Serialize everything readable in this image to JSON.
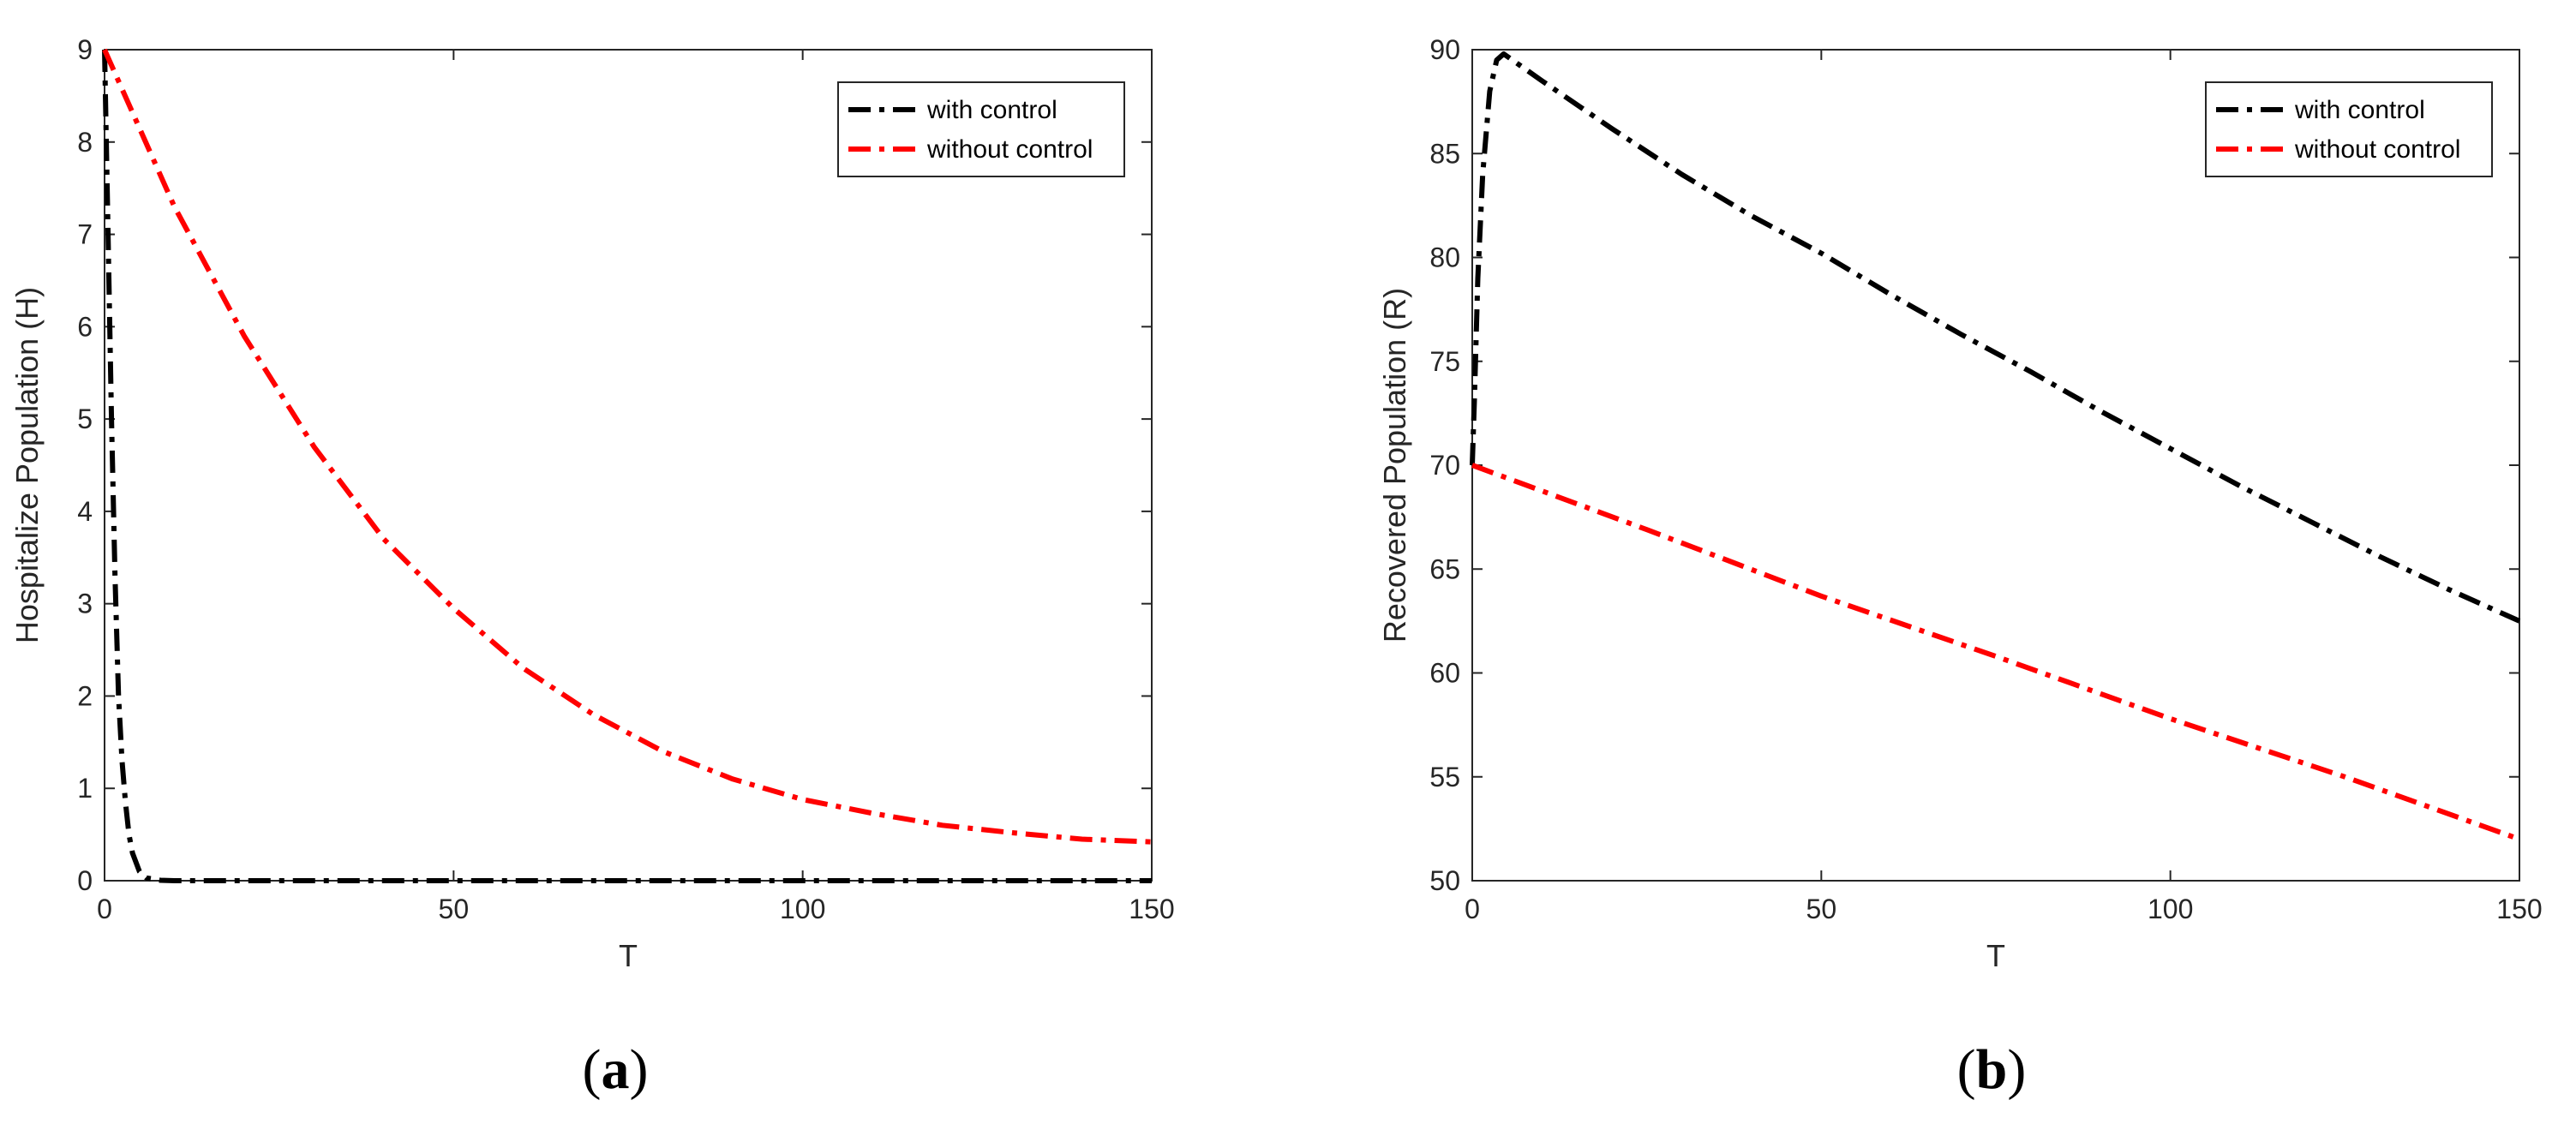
{
  "figure": {
    "panels": [
      {
        "label_open": "(",
        "label_letter": "a",
        "label_close": ")"
      },
      {
        "label_open": "(",
        "label_letter": "b",
        "label_close": ")"
      }
    ]
  },
  "chart_data": [
    {
      "type": "line",
      "xlabel": "T",
      "ylabel": "Hospitalize Population (H)",
      "xlim": [
        0,
        150
      ],
      "ylim": [
        0,
        9
      ],
      "xticks": [
        0,
        50,
        100,
        150
      ],
      "yticks": [
        0,
        1,
        2,
        3,
        4,
        5,
        6,
        7,
        8,
        9
      ],
      "grid": false,
      "legend_position": "top-right",
      "series": [
        {
          "name": "with control",
          "color": "#000000",
          "style": "dash-dot",
          "x": [
            0,
            0.5,
            1,
            1.5,
            2,
            2.5,
            3,
            3.5,
            4,
            5,
            6,
            8,
            10,
            20,
            50,
            100,
            150
          ],
          "y": [
            9.0,
            7.0,
            5.0,
            3.3,
            2.0,
            1.3,
            0.85,
            0.5,
            0.3,
            0.1,
            0.03,
            0.005,
            0.0,
            0.0,
            0.0,
            0.0,
            0.0
          ]
        },
        {
          "name": "without control",
          "color": "#ff0000",
          "style": "dash-dot",
          "x": [
            0,
            10,
            20,
            30,
            40,
            50,
            60,
            70,
            80,
            90,
            100,
            110,
            120,
            130,
            140,
            150
          ],
          "y": [
            9.0,
            7.3,
            5.9,
            4.7,
            3.7,
            2.95,
            2.3,
            1.8,
            1.4,
            1.1,
            0.88,
            0.73,
            0.6,
            0.52,
            0.45,
            0.42
          ]
        }
      ]
    },
    {
      "type": "line",
      "xlabel": "T",
      "ylabel": "Recovered Population (R)",
      "xlim": [
        0,
        150
      ],
      "ylim": [
        50,
        90
      ],
      "xticks": [
        0,
        50,
        100,
        150
      ],
      "yticks": [
        50,
        55,
        60,
        65,
        70,
        75,
        80,
        85,
        90
      ],
      "grid": false,
      "legend_position": "top-right",
      "series": [
        {
          "name": "with control",
          "color": "#000000",
          "style": "dash-dot",
          "x": [
            0,
            0.3,
            0.8,
            1.5,
            2.5,
            3.5,
            4.5,
            10,
            20,
            30,
            40,
            50,
            60,
            70,
            80,
            90,
            100,
            110,
            120,
            130,
            140,
            150
          ],
          "y": [
            70,
            73,
            79,
            84,
            88,
            89.5,
            89.8,
            88.5,
            86.2,
            84.0,
            82.0,
            80.2,
            78.2,
            76.3,
            74.5,
            72.6,
            70.8,
            69.0,
            67.3,
            65.6,
            64.0,
            62.5
          ]
        },
        {
          "name": "without control",
          "color": "#ff0000",
          "style": "dash-dot",
          "x": [
            0,
            25,
            50,
            75,
            100,
            125,
            150
          ],
          "y": [
            70,
            66.9,
            63.7,
            60.8,
            57.8,
            55.0,
            52.0
          ]
        }
      ]
    }
  ]
}
